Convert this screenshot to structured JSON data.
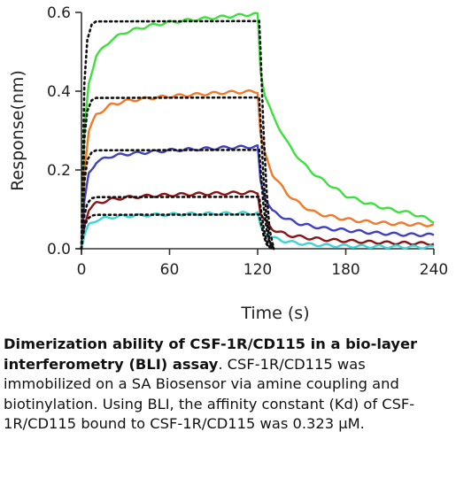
{
  "chart_data": {
    "type": "line",
    "xlabel": "Time (s)",
    "ylabel": "Response(nm)",
    "xlim": [
      0,
      240
    ],
    "ylim": [
      0,
      0.6
    ],
    "xticks": [
      0,
      60,
      120,
      180,
      240
    ],
    "yticks": [
      0.0,
      0.2,
      0.4,
      0.6
    ],
    "xtick_labels": [
      "0",
      "60",
      "120",
      "180",
      "240"
    ],
    "ytick_labels": [
      "0.0",
      "0.2",
      "0.4",
      "0.6"
    ],
    "grid": false,
    "series": [
      {
        "color": "#3ee03e",
        "measured": [
          [
            0,
            0.0
          ],
          [
            2,
            0.3
          ],
          [
            5,
            0.42
          ],
          [
            10,
            0.49
          ],
          [
            20,
            0.53
          ],
          [
            30,
            0.55
          ],
          [
            45,
            0.565
          ],
          [
            60,
            0.575
          ],
          [
            80,
            0.583
          ],
          [
            100,
            0.59
          ],
          [
            115,
            0.595
          ],
          [
            120,
            0.595
          ],
          [
            122,
            0.45
          ],
          [
            125,
            0.39
          ],
          [
            130,
            0.34
          ],
          [
            140,
            0.27
          ],
          [
            150,
            0.22
          ],
          [
            160,
            0.185
          ],
          [
            170,
            0.16
          ],
          [
            180,
            0.135
          ],
          [
            195,
            0.115
          ],
          [
            210,
            0.1
          ],
          [
            225,
            0.09
          ],
          [
            240,
            0.07
          ]
        ],
        "fit": [
          [
            0,
            0.0
          ],
          [
            1,
            0.22
          ],
          [
            2,
            0.42
          ],
          [
            4,
            0.53
          ],
          [
            7,
            0.57
          ],
          [
            10,
            0.577
          ],
          [
            121,
            0.578
          ],
          [
            122,
            0.5
          ],
          [
            124,
            0.3
          ],
          [
            126,
            0.15
          ],
          [
            128,
            0.05
          ],
          [
            131,
            0.0
          ]
        ]
      },
      {
        "color": "#f07a2a",
        "measured": [
          [
            0,
            0.0
          ],
          [
            2,
            0.2
          ],
          [
            5,
            0.3
          ],
          [
            10,
            0.34
          ],
          [
            20,
            0.365
          ],
          [
            30,
            0.375
          ],
          [
            45,
            0.382
          ],
          [
            60,
            0.387
          ],
          [
            80,
            0.392
          ],
          [
            100,
            0.397
          ],
          [
            120,
            0.399
          ],
          [
            122,
            0.29
          ],
          [
            125,
            0.24
          ],
          [
            130,
            0.19
          ],
          [
            140,
            0.14
          ],
          [
            150,
            0.11
          ],
          [
            160,
            0.09
          ],
          [
            175,
            0.078
          ],
          [
            190,
            0.07
          ],
          [
            210,
            0.064
          ],
          [
            240,
            0.06
          ]
        ],
        "fit": [
          [
            0,
            0.0
          ],
          [
            1,
            0.15
          ],
          [
            2,
            0.28
          ],
          [
            4,
            0.35
          ],
          [
            7,
            0.377
          ],
          [
            10,
            0.383
          ],
          [
            121,
            0.384
          ],
          [
            122,
            0.32
          ],
          [
            124,
            0.18
          ],
          [
            126,
            0.08
          ],
          [
            128,
            0.02
          ],
          [
            131,
            0.0
          ]
        ]
      },
      {
        "color": "#3f3fc2",
        "measured": [
          [
            0,
            0.0
          ],
          [
            2,
            0.12
          ],
          [
            5,
            0.19
          ],
          [
            10,
            0.22
          ],
          [
            20,
            0.235
          ],
          [
            30,
            0.24
          ],
          [
            45,
            0.245
          ],
          [
            60,
            0.25
          ],
          [
            80,
            0.253
          ],
          [
            100,
            0.257
          ],
          [
            120,
            0.259
          ],
          [
            122,
            0.17
          ],
          [
            125,
            0.13
          ],
          [
            130,
            0.095
          ],
          [
            140,
            0.075
          ],
          [
            150,
            0.062
          ],
          [
            165,
            0.052
          ],
          [
            180,
            0.047
          ],
          [
            200,
            0.04
          ],
          [
            220,
            0.036
          ],
          [
            240,
            0.035
          ]
        ],
        "fit": [
          [
            0,
            0.0
          ],
          [
            1,
            0.09
          ],
          [
            2,
            0.17
          ],
          [
            4,
            0.225
          ],
          [
            7,
            0.245
          ],
          [
            10,
            0.25
          ],
          [
            121,
            0.251
          ],
          [
            122,
            0.2
          ],
          [
            124,
            0.11
          ],
          [
            126,
            0.05
          ],
          [
            128,
            0.015
          ],
          [
            131,
            0.0
          ]
        ]
      },
      {
        "color": "#8b1414",
        "measured": [
          [
            0,
            0.0
          ],
          [
            2,
            0.06
          ],
          [
            5,
            0.1
          ],
          [
            10,
            0.115
          ],
          [
            20,
            0.125
          ],
          [
            30,
            0.13
          ],
          [
            50,
            0.135
          ],
          [
            70,
            0.138
          ],
          [
            90,
            0.14
          ],
          [
            110,
            0.142
          ],
          [
            120,
            0.143
          ],
          [
            122,
            0.09
          ],
          [
            125,
            0.07
          ],
          [
            130,
            0.05
          ],
          [
            140,
            0.035
          ],
          [
            155,
            0.027
          ],
          [
            170,
            0.022
          ],
          [
            190,
            0.018
          ],
          [
            210,
            0.015
          ],
          [
            240,
            0.013
          ]
        ],
        "fit": [
          [
            0,
            0.0
          ],
          [
            1,
            0.045
          ],
          [
            2,
            0.085
          ],
          [
            4,
            0.115
          ],
          [
            7,
            0.128
          ],
          [
            10,
            0.131
          ],
          [
            121,
            0.132
          ],
          [
            122,
            0.105
          ],
          [
            124,
            0.055
          ],
          [
            126,
            0.02
          ],
          [
            128,
            0.005
          ],
          [
            131,
            0.0
          ]
        ]
      },
      {
        "color": "#3cd4d4",
        "measured": [
          [
            0,
            0.0
          ],
          [
            2,
            0.035
          ],
          [
            5,
            0.06
          ],
          [
            10,
            0.073
          ],
          [
            20,
            0.08
          ],
          [
            30,
            0.083
          ],
          [
            50,
            0.086
          ],
          [
            70,
            0.088
          ],
          [
            90,
            0.089
          ],
          [
            110,
            0.09
          ],
          [
            120,
            0.09
          ],
          [
            122,
            0.055
          ],
          [
            125,
            0.04
          ],
          [
            130,
            0.028
          ],
          [
            140,
            0.018
          ],
          [
            155,
            0.011
          ],
          [
            170,
            0.008
          ],
          [
            190,
            0.006
          ],
          [
            240,
            0.004
          ]
        ],
        "fit": [
          [
            0,
            0.0
          ],
          [
            1,
            0.03
          ],
          [
            2,
            0.055
          ],
          [
            4,
            0.075
          ],
          [
            7,
            0.084
          ],
          [
            10,
            0.086
          ],
          [
            121,
            0.087
          ],
          [
            122,
            0.07
          ],
          [
            124,
            0.035
          ],
          [
            126,
            0.012
          ],
          [
            128,
            0.003
          ],
          [
            131,
            0.0
          ]
        ]
      }
    ]
  },
  "caption": {
    "bold": "Dimerization ability of CSF-1R/CD115 in a bio-layer interferometry (BLI) assay",
    "text": ". CSF-1R/CD115 was immobilized on a SA Biosensor via amine coupling and biotinylation. Using BLI, the affinity constant (Kd) of CSF-1R/CD115 bound to CSF-1R/CD115 was 0.323 μM."
  }
}
